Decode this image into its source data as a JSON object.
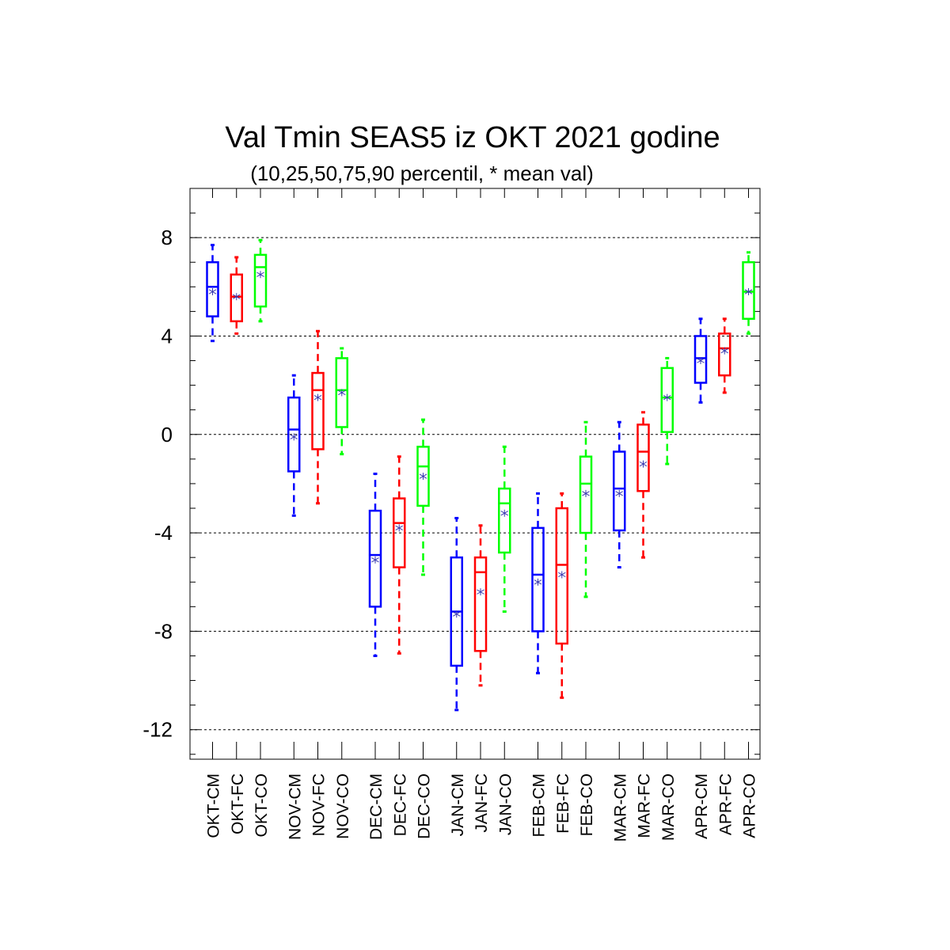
{
  "chart_data": {
    "type": "boxplot",
    "title": "Val Tmin SEAS5 iz OKT 2021 godine",
    "subtitle": "(10,25,50,75,90 percentil, * mean val)",
    "ylim": [
      -13.2,
      10
    ],
    "yticks": [
      8,
      4,
      0,
      -4,
      -8,
      -12
    ],
    "ytick_labels": [
      "8",
      "4",
      "0",
      "-4",
      "-8",
      "-12"
    ],
    "grid": "horizontal dashed at major ticks",
    "colors": {
      "CM": "#0000ff",
      "FC": "#ff0000",
      "CO": "#00ff00"
    },
    "categories": [
      "OKT-CM",
      "OKT-FC",
      "OKT-CO",
      "NOV-CM",
      "NOV-FC",
      "NOV-CO",
      "DEC-CM",
      "DEC-FC",
      "DEC-CO",
      "JAN-CM",
      "JAN-FC",
      "JAN-CO",
      "FEB-CM",
      "FEB-FC",
      "FEB-CO",
      "MAR-CM",
      "MAR-FC",
      "MAR-CO",
      "APR-CM",
      "APR-FC",
      "APR-CO"
    ],
    "boxes": [
      {
        "label": "OKT-CM",
        "group": "CM",
        "p10": 3.8,
        "p25": 4.8,
        "p50": 6.0,
        "p75": 7.0,
        "p90": 7.7,
        "mean": 5.8
      },
      {
        "label": "OKT-FC",
        "group": "FC",
        "p10": 4.1,
        "p25": 4.6,
        "p50": 5.6,
        "p75": 6.5,
        "p90": 7.2,
        "mean": 5.6
      },
      {
        "label": "OKT-CO",
        "group": "CO",
        "p10": 4.6,
        "p25": 5.2,
        "p50": 6.8,
        "p75": 7.3,
        "p90": 7.9,
        "mean": 6.5
      },
      {
        "label": "NOV-CM",
        "group": "CM",
        "p10": -3.3,
        "p25": -1.5,
        "p50": 0.2,
        "p75": 1.5,
        "p90": 2.4,
        "mean": -0.1
      },
      {
        "label": "NOV-FC",
        "group": "FC",
        "p10": -2.8,
        "p25": -0.6,
        "p50": 1.8,
        "p75": 2.5,
        "p90": 4.2,
        "mean": 1.5
      },
      {
        "label": "NOV-CO",
        "group": "CO",
        "p10": -0.8,
        "p25": 0.3,
        "p50": 1.8,
        "p75": 3.1,
        "p90": 3.5,
        "mean": 1.7
      },
      {
        "label": "DEC-CM",
        "group": "CM",
        "p10": -9.0,
        "p25": -7.0,
        "p50": -4.9,
        "p75": -3.1,
        "p90": -1.6,
        "mean": -5.1
      },
      {
        "label": "DEC-FC",
        "group": "FC",
        "p10": -8.9,
        "p25": -5.4,
        "p50": -3.6,
        "p75": -2.6,
        "p90": -0.9,
        "mean": -3.8
      },
      {
        "label": "DEC-CO",
        "group": "CO",
        "p10": -5.7,
        "p25": -2.9,
        "p50": -1.3,
        "p75": -0.5,
        "p90": 0.6,
        "mean": -1.7
      },
      {
        "label": "JAN-CM",
        "group": "CM",
        "p10": -11.2,
        "p25": -9.4,
        "p50": -7.2,
        "p75": -5.0,
        "p90": -3.4,
        "mean": -7.3
      },
      {
        "label": "JAN-FC",
        "group": "FC",
        "p10": -10.2,
        "p25": -8.8,
        "p50": -5.6,
        "p75": -5.0,
        "p90": -3.7,
        "mean": -6.4
      },
      {
        "label": "JAN-CO",
        "group": "CO",
        "p10": -7.2,
        "p25": -4.8,
        "p50": -2.8,
        "p75": -2.2,
        "p90": -0.5,
        "mean": -3.2
      },
      {
        "label": "FEB-CM",
        "group": "CM",
        "p10": -9.7,
        "p25": -8.0,
        "p50": -5.7,
        "p75": -3.8,
        "p90": -2.4,
        "mean": -6.0
      },
      {
        "label": "FEB-FC",
        "group": "FC",
        "p10": -10.7,
        "p25": -8.5,
        "p50": -5.3,
        "p75": -3.0,
        "p90": -2.4,
        "mean": -5.7
      },
      {
        "label": "FEB-CO",
        "group": "CO",
        "p10": -6.6,
        "p25": -4.0,
        "p50": -2.0,
        "p75": -0.9,
        "p90": 0.5,
        "mean": -2.4
      },
      {
        "label": "MAR-CM",
        "group": "CM",
        "p10": -5.4,
        "p25": -3.9,
        "p50": -2.2,
        "p75": -0.7,
        "p90": 0.5,
        "mean": -2.4
      },
      {
        "label": "MAR-FC",
        "group": "FC",
        "p10": -5.0,
        "p25": -2.3,
        "p50": -0.7,
        "p75": 0.4,
        "p90": 0.9,
        "mean": -1.2
      },
      {
        "label": "MAR-CO",
        "group": "CO",
        "p10": -1.2,
        "p25": 0.1,
        "p50": 1.5,
        "p75": 2.7,
        "p90": 3.1,
        "mean": 1.5
      },
      {
        "label": "APR-CM",
        "group": "CM",
        "p10": 1.3,
        "p25": 2.1,
        "p50": 3.1,
        "p75": 4.0,
        "p90": 4.7,
        "mean": 3.0
      },
      {
        "label": "APR-FC",
        "group": "FC",
        "p10": 1.7,
        "p25": 2.4,
        "p50": 3.5,
        "p75": 4.1,
        "p90": 4.7,
        "mean": 3.4
      },
      {
        "label": "APR-CO",
        "group": "CO",
        "p10": 4.1,
        "p25": 4.7,
        "p50": 5.8,
        "p75": 7.0,
        "p90": 7.4,
        "mean": 5.8
      }
    ]
  }
}
